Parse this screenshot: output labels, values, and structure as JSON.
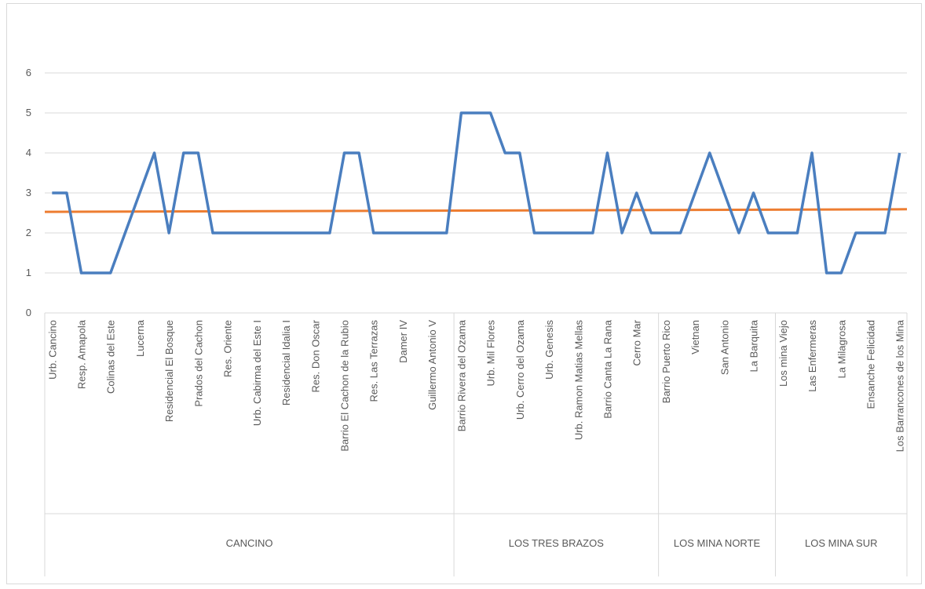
{
  "chart_data": {
    "type": "line",
    "groups": [
      {
        "name": "CANCINO",
        "categories": [
          "Urb. Cancino",
          null,
          "Resp. Amapola",
          null,
          "Colinas del Este",
          null,
          "Lucerna",
          null,
          "Residencial El Bosque",
          null,
          "Prados del Cachon",
          null,
          "Res. Oriente",
          null,
          "Urb. Cabirma del Este I",
          null,
          "Residencial Idalia I",
          null,
          "Res. Don Oscar",
          null,
          "Barrio El Cachon de la Rubio",
          null,
          "Res. Las Terrazas",
          null,
          "Damer IV",
          null,
          "Guillermo Antonio V",
          null
        ]
      },
      {
        "name": "LOS TRES BRAZOS",
        "categories": [
          "Barrio Rivera del Ozama",
          null,
          "Urb. Mil Flores",
          null,
          "Urb. Cerro del Ozama",
          null,
          "Urb. Genesis",
          null,
          "Urb. Ramon Matias Mellas",
          null,
          "Barrio Canta La Rana",
          null,
          "Cerro Mar",
          null
        ]
      },
      {
        "name": "LOS MINA NORTE",
        "categories": [
          "Barrio Puerto Rico",
          null,
          "Vietnan",
          null,
          "San Antonio",
          null,
          "La Barquita",
          null
        ]
      },
      {
        "name": "LOS MINA SUR",
        "categories": [
          "Los mina Viejo",
          null,
          "Las Enfermeras",
          null,
          "La Milagrosa",
          null,
          "Ensanche Felicidad",
          null,
          "Los Barrancones de los Mina"
        ]
      }
    ],
    "series": [
      {
        "color": "#4a7ebf",
        "values": [
          3,
          3,
          1,
          1,
          1,
          2,
          3,
          4,
          2,
          4,
          4,
          2,
          2,
          2,
          2,
          2,
          2,
          2,
          2,
          2,
          4,
          4,
          2,
          2,
          2,
          2,
          2,
          2,
          5,
          5,
          5,
          4,
          4,
          2,
          2,
          2,
          2,
          2,
          4,
          2,
          3,
          2,
          2,
          2,
          3,
          4,
          3,
          2,
          3,
          2,
          2,
          2,
          4,
          1,
          1,
          2,
          2,
          2,
          4
        ],
        "trendline": {
          "type": "linear",
          "color": "#ed7d31"
        }
      }
    ],
    "ylim": [
      0,
      6
    ],
    "yticks": [
      0,
      1,
      2,
      3,
      4,
      5,
      6
    ],
    "grid": true
  }
}
